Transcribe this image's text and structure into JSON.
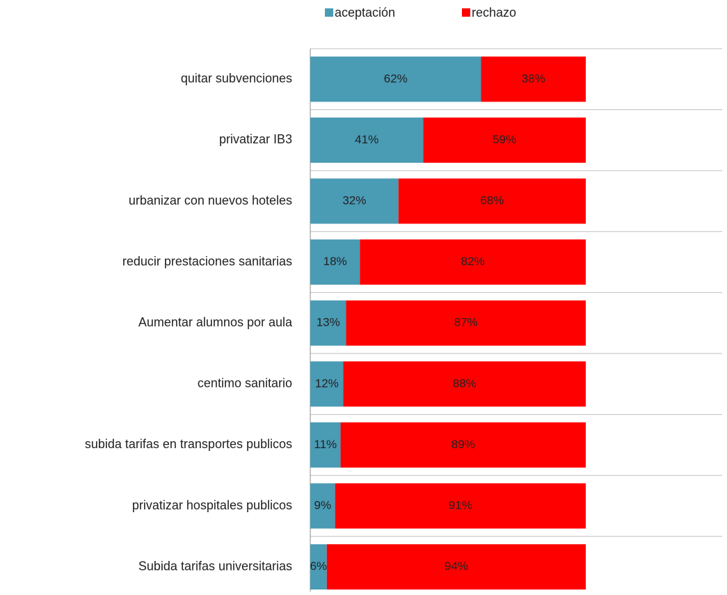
{
  "chart_data": {
    "type": "stacked-bar-horizontal",
    "categories": [
      "quitar subvenciones",
      "privatizar IB3",
      "urbanizar con nuevos hoteles",
      "reducir prestaciones sanitarias",
      "Aumentar alumnos por aula",
      "centimo sanitario",
      "subida tarifas en transportes publicos",
      "privatizar hospitales publicos",
      "Subida tarifas universitarias"
    ],
    "series": [
      {
        "name": "aceptación",
        "color": "#4a9bb4",
        "values": [
          62,
          41,
          32,
          18,
          13,
          12,
          11,
          9,
          6
        ],
        "value_labels": [
          "62%",
          "41%",
          "32%",
          "18%",
          "13%",
          "12%",
          "11%",
          "9%",
          "6%"
        ]
      },
      {
        "name": "rechazo",
        "color": "#ff0000",
        "values": [
          38,
          59,
          68,
          82,
          87,
          88,
          89,
          91,
          94
        ],
        "value_labels": [
          "38%",
          "59%",
          "68%",
          "82%",
          "87%",
          "88%",
          "89%",
          "91%",
          "94%"
        ]
      }
    ],
    "legend": "top"
  }
}
